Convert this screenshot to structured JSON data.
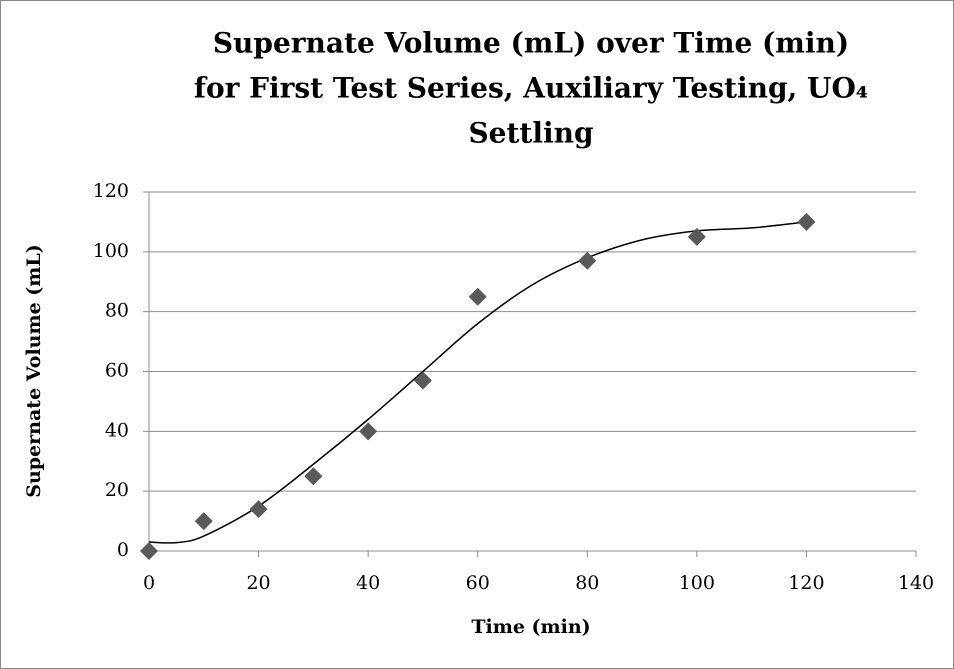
{
  "chart_data": {
    "type": "scatter",
    "title": [
      "Supernate Volume (mL) over Time (min)",
      "for First Test Series, Auxiliary Testing, UO₄",
      "Settling"
    ],
    "x_label": "Time (min)",
    "y_label": "Supernate Volume (mL)",
    "series": [
      {
        "color": "#595959",
        "x": [
          0,
          10,
          20,
          30,
          40,
          50,
          60,
          80,
          100,
          120
        ],
        "values": [
          0,
          10,
          14,
          25,
          40,
          57,
          85,
          97,
          105,
          110
        ]
      }
    ],
    "trendline": {
      "color": "#000000",
      "x": [
        0,
        5,
        10,
        20,
        30,
        40,
        50,
        60,
        70,
        80,
        90,
        100,
        110,
        120
      ],
      "values": [
        3,
        2.8,
        5,
        15,
        29,
        44,
        60,
        76,
        89,
        98,
        104,
        107,
        108,
        110
      ]
    },
    "xlim": [
      0,
      140
    ],
    "xticks": [
      0,
      20,
      40,
      60,
      80,
      100,
      120,
      140
    ],
    "ylim": [
      0,
      120
    ],
    "yticks": [
      0,
      20,
      40,
      60,
      80,
      100,
      120
    ],
    "grid": true
  }
}
